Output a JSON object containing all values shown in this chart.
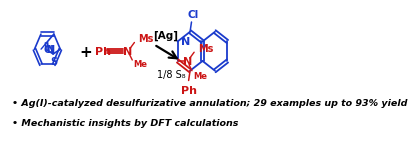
{
  "background_color": "#ffffff",
  "bullet1": "• Ag(I)-catalyzed desulfurizative annulation; 29 examples up to 93% yield",
  "bullet2": "• Mechanistic insights by DFT calculations",
  "bullet_fontsize": 6.8,
  "bullet_color": "#000000",
  "blue_color": "#1a3acc",
  "red_color": "#cc1515",
  "black_color": "#000000"
}
